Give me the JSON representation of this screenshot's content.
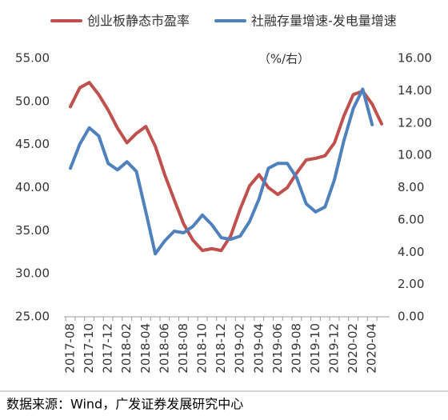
{
  "chart_data": {
    "type": "line",
    "legend": "top",
    "annotation": "（%/右）",
    "source": "数据来源：Wind，广发证券发展研究中心",
    "categories": [
      "2017-08",
      null,
      "2017-10",
      null,
      "2017-12",
      null,
      "2018-02",
      null,
      "2018-04",
      null,
      "2018-06",
      null,
      "2018-08",
      null,
      "2018-10",
      null,
      "2018-12",
      null,
      "2019-02",
      null,
      "2019-04",
      null,
      "2019-06",
      null,
      "2019-08",
      null,
      "2019-10",
      null,
      "2019-12",
      null,
      "2020-02",
      null,
      "2020-04",
      null
    ],
    "series": [
      {
        "name": "创业板静态市盈率",
        "color": "#c0504d",
        "axis": "y",
        "values": [
          49.4,
          51.6,
          52.2,
          50.8,
          49.0,
          46.9,
          45.2,
          46.3,
          47.1,
          44.8,
          41.5,
          38.6,
          35.8,
          33.9,
          32.7,
          32.9,
          32.7,
          34.4,
          37.5,
          40.2,
          41.5,
          40.0,
          39.2,
          40.0,
          41.7,
          43.2,
          43.4,
          43.7,
          45.2,
          48.3,
          50.8,
          51.2,
          49.7,
          47.4
        ]
      },
      {
        "name": "社融存量增速-发电量增速",
        "color": "#4f81bd",
        "axis": "y2",
        "values": [
          9.2,
          10.7,
          11.7,
          11.2,
          9.5,
          9.1,
          9.6,
          9.0,
          6.5,
          3.9,
          4.7,
          5.3,
          5.2,
          5.6,
          6.3,
          5.7,
          4.9,
          4.8,
          5.0,
          5.9,
          7.3,
          9.2,
          9.5,
          9.5,
          8.6,
          7.0,
          6.5,
          6.8,
          8.5,
          10.9,
          12.9,
          14.1,
          11.9,
          null
        ]
      }
    ],
    "ylim": [
      25,
      55
    ],
    "yticks": [
      {
        "value": 25,
        "label": "25.00"
      },
      {
        "value": 30,
        "label": "30.00"
      },
      {
        "value": 35,
        "label": "35.00"
      },
      {
        "value": 40,
        "label": "40.00"
      },
      {
        "value": 45,
        "label": "45.00"
      },
      {
        "value": 50,
        "label": "50.00"
      },
      {
        "value": 55,
        "label": "55.00"
      }
    ],
    "y2lim": [
      0,
      16
    ],
    "y2ticks": [
      {
        "value": 0,
        "label": "0.00"
      },
      {
        "value": 2,
        "label": "2.00"
      },
      {
        "value": 4,
        "label": "4.00"
      },
      {
        "value": 6,
        "label": "6.00"
      },
      {
        "value": 8,
        "label": "8.00"
      },
      {
        "value": 10,
        "label": "10.00"
      },
      {
        "value": 12,
        "label": "12.00"
      },
      {
        "value": 14,
        "label": "14.00"
      },
      {
        "value": 16,
        "label": "16.00"
      }
    ],
    "grid": false
  }
}
